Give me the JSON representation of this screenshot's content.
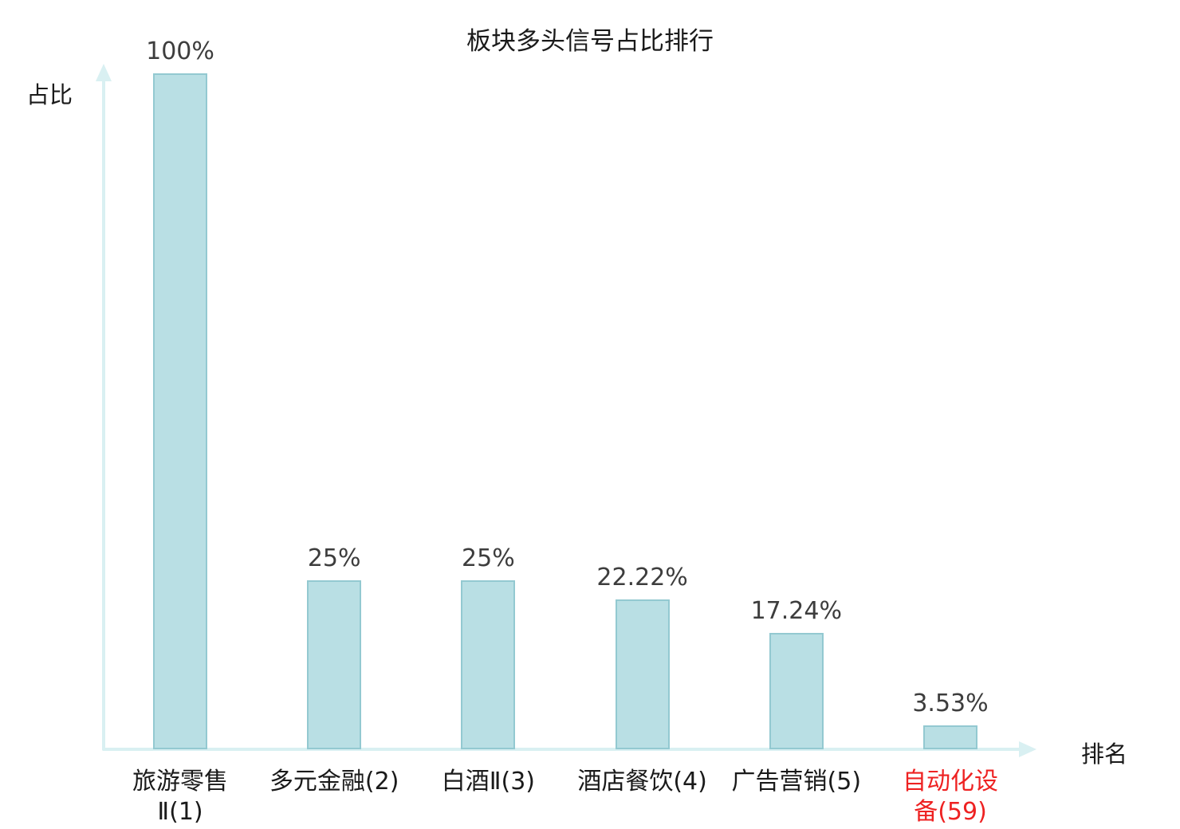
{
  "chart_data": {
    "type": "bar",
    "title": "板块多头信号占比排行",
    "xlabel": "排名",
    "ylabel": "占比",
    "categories": [
      "旅游零售\nⅡ(1)",
      "多元金融(2)",
      "白酒Ⅱ(3)",
      "酒店餐饮(4)",
      "广告营销(5)",
      "自动化设\n备(59)"
    ],
    "values": [
      100,
      25,
      25,
      22.22,
      17.24,
      3.53
    ],
    "value_labels": [
      "100%",
      "25%",
      "25%",
      "22.22%",
      "17.24%",
      "3.53%"
    ],
    "ylim": [
      0,
      100
    ],
    "grid": false,
    "legend": null,
    "highlight_index": 5,
    "colors": {
      "background": "#ffffff",
      "bar_fill": "#b9dfe4",
      "bar_border": "#93c9d1",
      "axis": "#d9f0f2",
      "value_label": "#3d3d3d",
      "category_label": "#1a1a1a",
      "highlight_label": "#ee2222"
    }
  }
}
